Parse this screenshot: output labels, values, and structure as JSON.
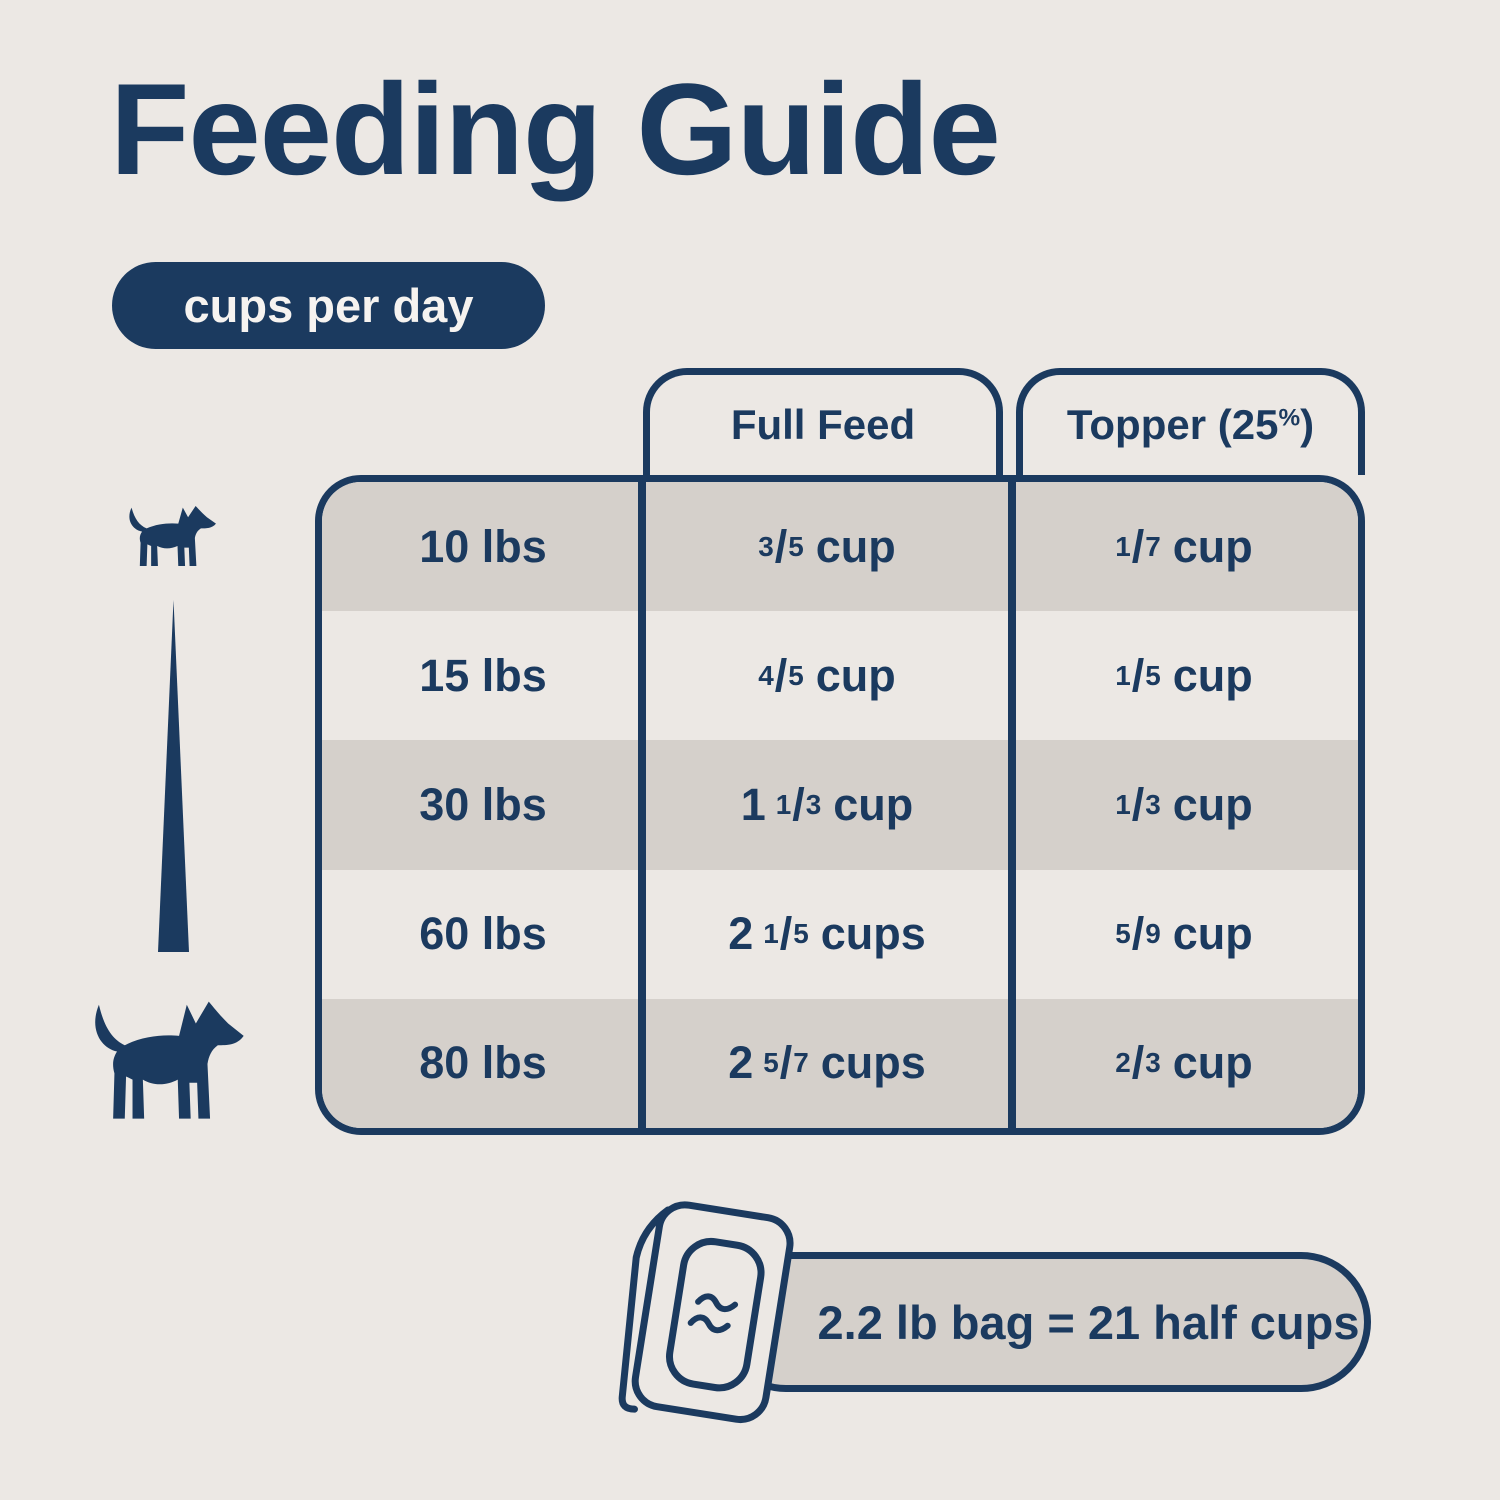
{
  "page": {
    "title": "Feeding Guide",
    "subtitle_badge": "cups per day"
  },
  "table": {
    "headers": {
      "full_feed": "Full Feed",
      "topper_pre": "Topper (25",
      "topper_sup": "%",
      "topper_post": ")"
    },
    "rows": [
      {
        "weight": "10 lbs",
        "full_feed": {
          "whole": "",
          "num": "3",
          "den": "5",
          "unit": "cup"
        },
        "topper": {
          "whole": "",
          "num": "1",
          "den": "7",
          "unit": "cup"
        }
      },
      {
        "weight": "15 lbs",
        "full_feed": {
          "whole": "",
          "num": "4",
          "den": "5",
          "unit": "cup"
        },
        "topper": {
          "whole": "",
          "num": "1",
          "den": "5",
          "unit": "cup"
        }
      },
      {
        "weight": "30 lbs",
        "full_feed": {
          "whole": "1",
          "num": "1",
          "den": "3",
          "unit": "cup"
        },
        "topper": {
          "whole": "",
          "num": "1",
          "den": "3",
          "unit": "cup"
        }
      },
      {
        "weight": "60 lbs",
        "full_feed": {
          "whole": "2",
          "num": "1",
          "den": "5",
          "unit": "cups"
        },
        "topper": {
          "whole": "",
          "num": "5",
          "den": "9",
          "unit": "cup"
        }
      },
      {
        "weight": "80 lbs",
        "full_feed": {
          "whole": "2",
          "num": "5",
          "den": "7",
          "unit": "cups"
        },
        "topper": {
          "whole": "",
          "num": "2",
          "den": "3",
          "unit": "cup"
        }
      }
    ]
  },
  "footer": {
    "bag_note": "2.2 lb bag = 21 half cups"
  },
  "icons": {
    "small_dog": "small-dog-icon",
    "large_dog": "large-dog-icon",
    "size_scale": "size-scale-triangle-icon",
    "food_bag": "food-bag-icon"
  },
  "colors": {
    "navy": "#1b3a5f",
    "background": "#ece8e4",
    "row_gray": "#d5d0cb",
    "badge_text": "#f6f3f0"
  }
}
